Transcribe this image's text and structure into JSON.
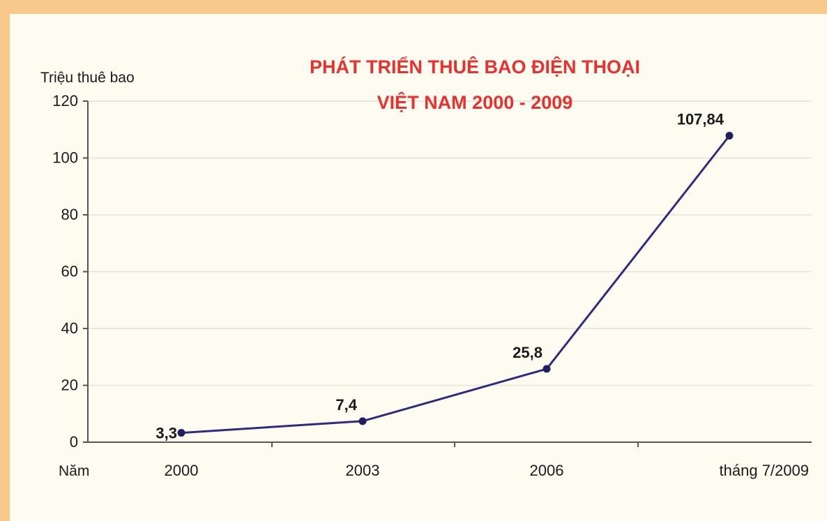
{
  "chart_data": {
    "type": "line",
    "title_line1": "PHÁT TRIỂN THUÊ BAO ĐIỆN THOẠI",
    "title_line2": "VIỆT NAM  2000 - 2009",
    "ylabel": "Triệu thuê bao",
    "xlabel": "Năm",
    "categories": [
      "2000",
      "2003",
      "2006",
      "tháng 7/2009"
    ],
    "values": [
      3.3,
      7.4,
      25.8,
      107.84
    ],
    "data_labels": [
      "3,3",
      "7,4",
      "25,8",
      "107,84"
    ],
    "yticks": [
      "0",
      "20",
      "40",
      "60",
      "80",
      "100",
      "120"
    ],
    "ylim": [
      0,
      120
    ],
    "grid": true,
    "colors": {
      "line": "#2e2c80",
      "marker": "#1f2060",
      "title": "#e8312e",
      "grid": "#e4e2d8"
    }
  }
}
